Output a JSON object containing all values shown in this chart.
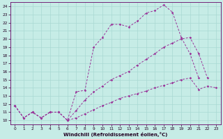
{
  "xlabel": "Windchill (Refroidissement éolien,°C)",
  "bg_color": "#c6ece6",
  "grid_color": "#a8d8d2",
  "line_color": "#993399",
  "xlim": [
    -0.5,
    23.5
  ],
  "ylim": [
    9.5,
    24.5
  ],
  "xticks": [
    0,
    1,
    2,
    3,
    4,
    5,
    6,
    7,
    8,
    9,
    10,
    11,
    12,
    13,
    14,
    15,
    16,
    17,
    18,
    19,
    20,
    21,
    22,
    23
  ],
  "yticks": [
    10,
    11,
    12,
    13,
    14,
    15,
    16,
    17,
    18,
    19,
    20,
    21,
    22,
    23,
    24
  ],
  "line1_x": [
    0,
    1,
    2,
    3,
    4,
    5,
    6,
    7,
    8,
    9,
    10,
    11,
    12,
    13,
    14,
    15,
    16,
    17,
    18,
    19,
    20,
    21
  ],
  "line1_y": [
    11.8,
    10.3,
    11.0,
    10.3,
    11.0,
    11.0,
    10.0,
    13.5,
    13.7,
    19.0,
    20.2,
    21.8,
    21.8,
    21.5,
    22.2,
    23.2,
    23.5,
    24.2,
    23.3,
    20.2,
    18.2,
    15.2
  ],
  "line2_x": [
    0,
    1,
    2,
    3,
    4,
    5,
    6,
    7,
    8,
    9,
    10,
    11,
    12,
    13,
    14,
    15,
    16,
    17,
    18,
    19,
    20,
    21,
    22
  ],
  "line2_y": [
    11.8,
    10.3,
    11.0,
    10.3,
    11.0,
    11.0,
    10.0,
    11.2,
    12.5,
    13.5,
    14.2,
    15.0,
    15.5,
    16.0,
    16.8,
    17.5,
    18.2,
    19.0,
    19.5,
    20.0,
    20.2,
    18.2,
    15.2
  ],
  "line3_x": [
    0,
    1,
    2,
    3,
    4,
    5,
    6,
    7,
    8,
    9,
    10,
    11,
    12,
    13,
    14,
    15,
    16,
    17,
    18,
    19,
    20,
    21,
    22,
    23
  ],
  "line3_y": [
    11.8,
    10.3,
    11.0,
    10.3,
    11.0,
    11.0,
    10.0,
    10.3,
    10.8,
    11.3,
    11.8,
    12.2,
    12.7,
    13.0,
    13.3,
    13.6,
    14.0,
    14.3,
    14.6,
    15.0,
    15.2,
    13.8,
    14.2,
    14.0
  ]
}
